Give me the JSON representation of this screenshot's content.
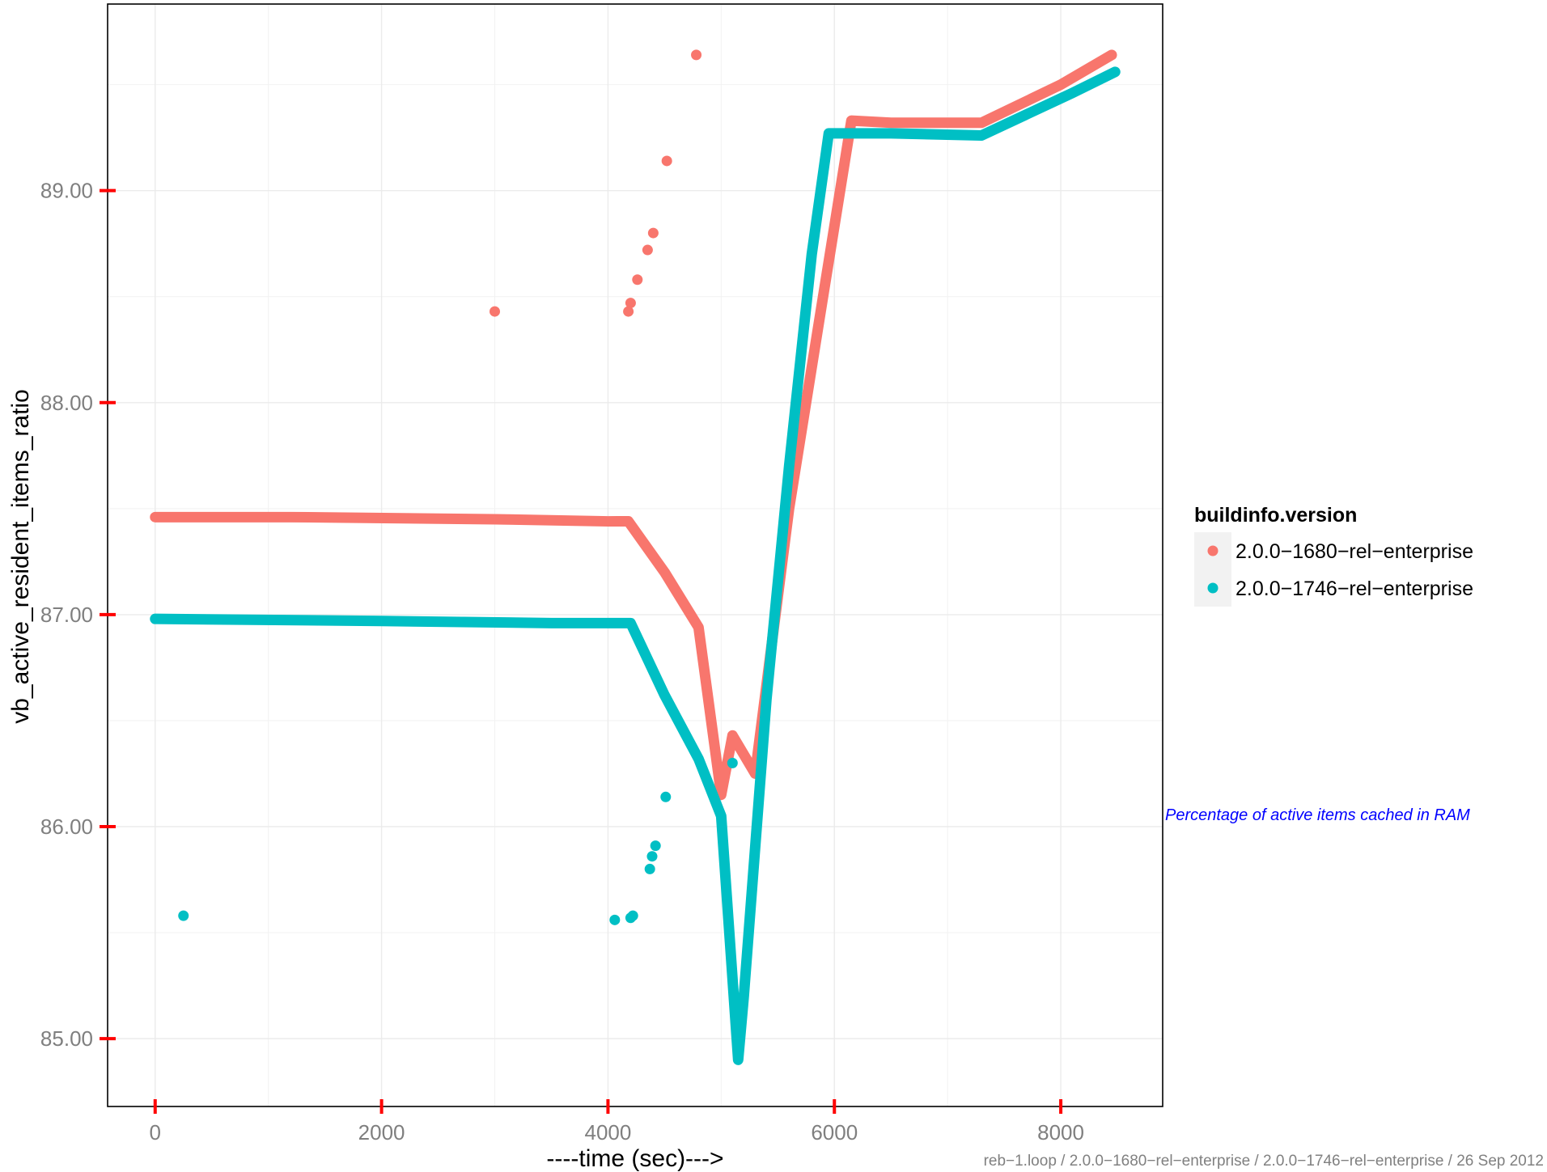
{
  "chart_data": {
    "type": "scatter",
    "xlabel": "----time (sec)--->",
    "ylabel": "vb_active_resident_items_ratio",
    "xlim": [
      -420,
      8900
    ],
    "ylim": [
      84.68,
      89.88
    ],
    "x_ticks": [
      0,
      2000,
      4000,
      6000,
      8000
    ],
    "x_tick_labels": [
      "0",
      "2000",
      "4000",
      "6000",
      "8000"
    ],
    "y_ticks": [
      85,
      86,
      87,
      88,
      89
    ],
    "y_tick_labels": [
      "85.00",
      "86.00",
      "87.00",
      "88.00",
      "89.00"
    ],
    "grid": true,
    "legend": {
      "title": "buildinfo.version",
      "position": "right"
    },
    "annotation": "Percentage of active items cached in RAM",
    "footer": "reb−1.loop / 2.0.0−1680−rel−enterprise / 2.0.0−1746−rel−enterprise / 26 Sep 2012",
    "series": [
      {
        "name": "2.0.0−1680−rel−enterprise",
        "color": "#F8766D",
        "line": [
          [
            0,
            87.46
          ],
          [
            1200,
            87.46
          ],
          [
            3000,
            87.45
          ],
          [
            4000,
            87.44
          ],
          [
            4180,
            87.44
          ],
          [
            4500,
            87.2
          ],
          [
            4800,
            86.94
          ],
          [
            5000,
            86.15
          ],
          [
            5100,
            86.43
          ],
          [
            5300,
            86.25
          ],
          [
            5600,
            87.5
          ],
          [
            5900,
            88.5
          ],
          [
            6150,
            89.33
          ],
          [
            6500,
            89.32
          ],
          [
            7300,
            89.32
          ],
          [
            8000,
            89.5
          ],
          [
            8450,
            89.64
          ]
        ],
        "outliers": [
          [
            3000,
            88.43
          ],
          [
            4180,
            88.43
          ],
          [
            4200,
            88.47
          ],
          [
            4260,
            88.58
          ],
          [
            4350,
            88.72
          ],
          [
            4400,
            88.8
          ],
          [
            4520,
            89.14
          ],
          [
            4780,
            89.64
          ]
        ]
      },
      {
        "name": "2.0.0−1746−rel−enterprise",
        "color": "#00BFC4",
        "line": [
          [
            0,
            86.98
          ],
          [
            2000,
            86.97
          ],
          [
            3500,
            86.96
          ],
          [
            4000,
            86.96
          ],
          [
            4200,
            86.96
          ],
          [
            4500,
            86.62
          ],
          [
            4800,
            86.32
          ],
          [
            5000,
            86.05
          ],
          [
            5150,
            84.9
          ],
          [
            5200,
            85.2
          ],
          [
            5400,
            86.6
          ],
          [
            5600,
            87.7
          ],
          [
            5800,
            88.7
          ],
          [
            5950,
            89.27
          ],
          [
            6500,
            89.27
          ],
          [
            7300,
            89.26
          ],
          [
            7700,
            89.36
          ],
          [
            8100,
            89.46
          ],
          [
            8480,
            89.56
          ]
        ],
        "outliers": [
          [
            250,
            85.58
          ],
          [
            4060,
            85.56
          ],
          [
            4200,
            85.57
          ],
          [
            4220,
            85.58
          ],
          [
            4370,
            85.8
          ],
          [
            4390,
            85.86
          ],
          [
            4420,
            85.91
          ],
          [
            4510,
            86.14
          ],
          [
            5100,
            86.3
          ]
        ]
      }
    ]
  }
}
